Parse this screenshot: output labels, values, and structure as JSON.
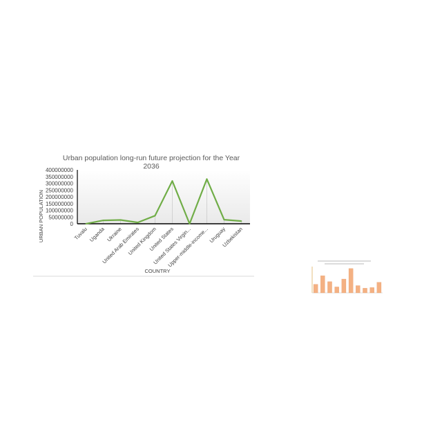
{
  "colors": {
    "line": "#70AD47",
    "axis": "#000000",
    "gridline": "#bfbfbf",
    "separator": "#d9d9d9",
    "thumb_bar": "#F4B183",
    "thumb_bar_stroke": "#E59866"
  },
  "chart_data": [
    {
      "type": "line",
      "title": "Urban population  long-run  future  projection  for the Year 2036",
      "title_lines": [
        "Urban population  long-run  future  projection  for the Year",
        "2036"
      ],
      "xlabel": "COUNTRY",
      "ylabel": "URBAN POPULATION",
      "ylim": [
        0,
        400000000
      ],
      "yticks": [
        0,
        50000000,
        100000000,
        150000000,
        200000000,
        250000000,
        300000000,
        350000000,
        400000000
      ],
      "ytick_labels": [
        "0",
        "50000000",
        "100000000",
        "150000000",
        "200000000",
        "250000000",
        "300000000",
        "350000000",
        "400000000"
      ],
      "categories": [
        "Tuvalu",
        "Uganda",
        "Ukraine",
        "United Arab Emirates",
        "United Kingdom",
        "United States",
        "United States Virgin...",
        "Upper-middle-income...",
        "Uruguay",
        "Uzbekistan"
      ],
      "series": [
        {
          "values": [
            10000,
            25000000,
            28000000,
            10000000,
            60000000,
            318000000,
            100000,
            332000000,
            30000000,
            20000000
          ]
        }
      ],
      "grid": false,
      "legend": "none"
    },
    {
      "type": "bar",
      "title": "",
      "categories": [
        "",
        "",
        "",
        "",
        "",
        "",
        "",
        "",
        "",
        ""
      ],
      "values": [
        13,
        26,
        17,
        9,
        21,
        37,
        11,
        7,
        8,
        16
      ],
      "ylim": [
        0,
        40
      ],
      "grid": false
    }
  ]
}
